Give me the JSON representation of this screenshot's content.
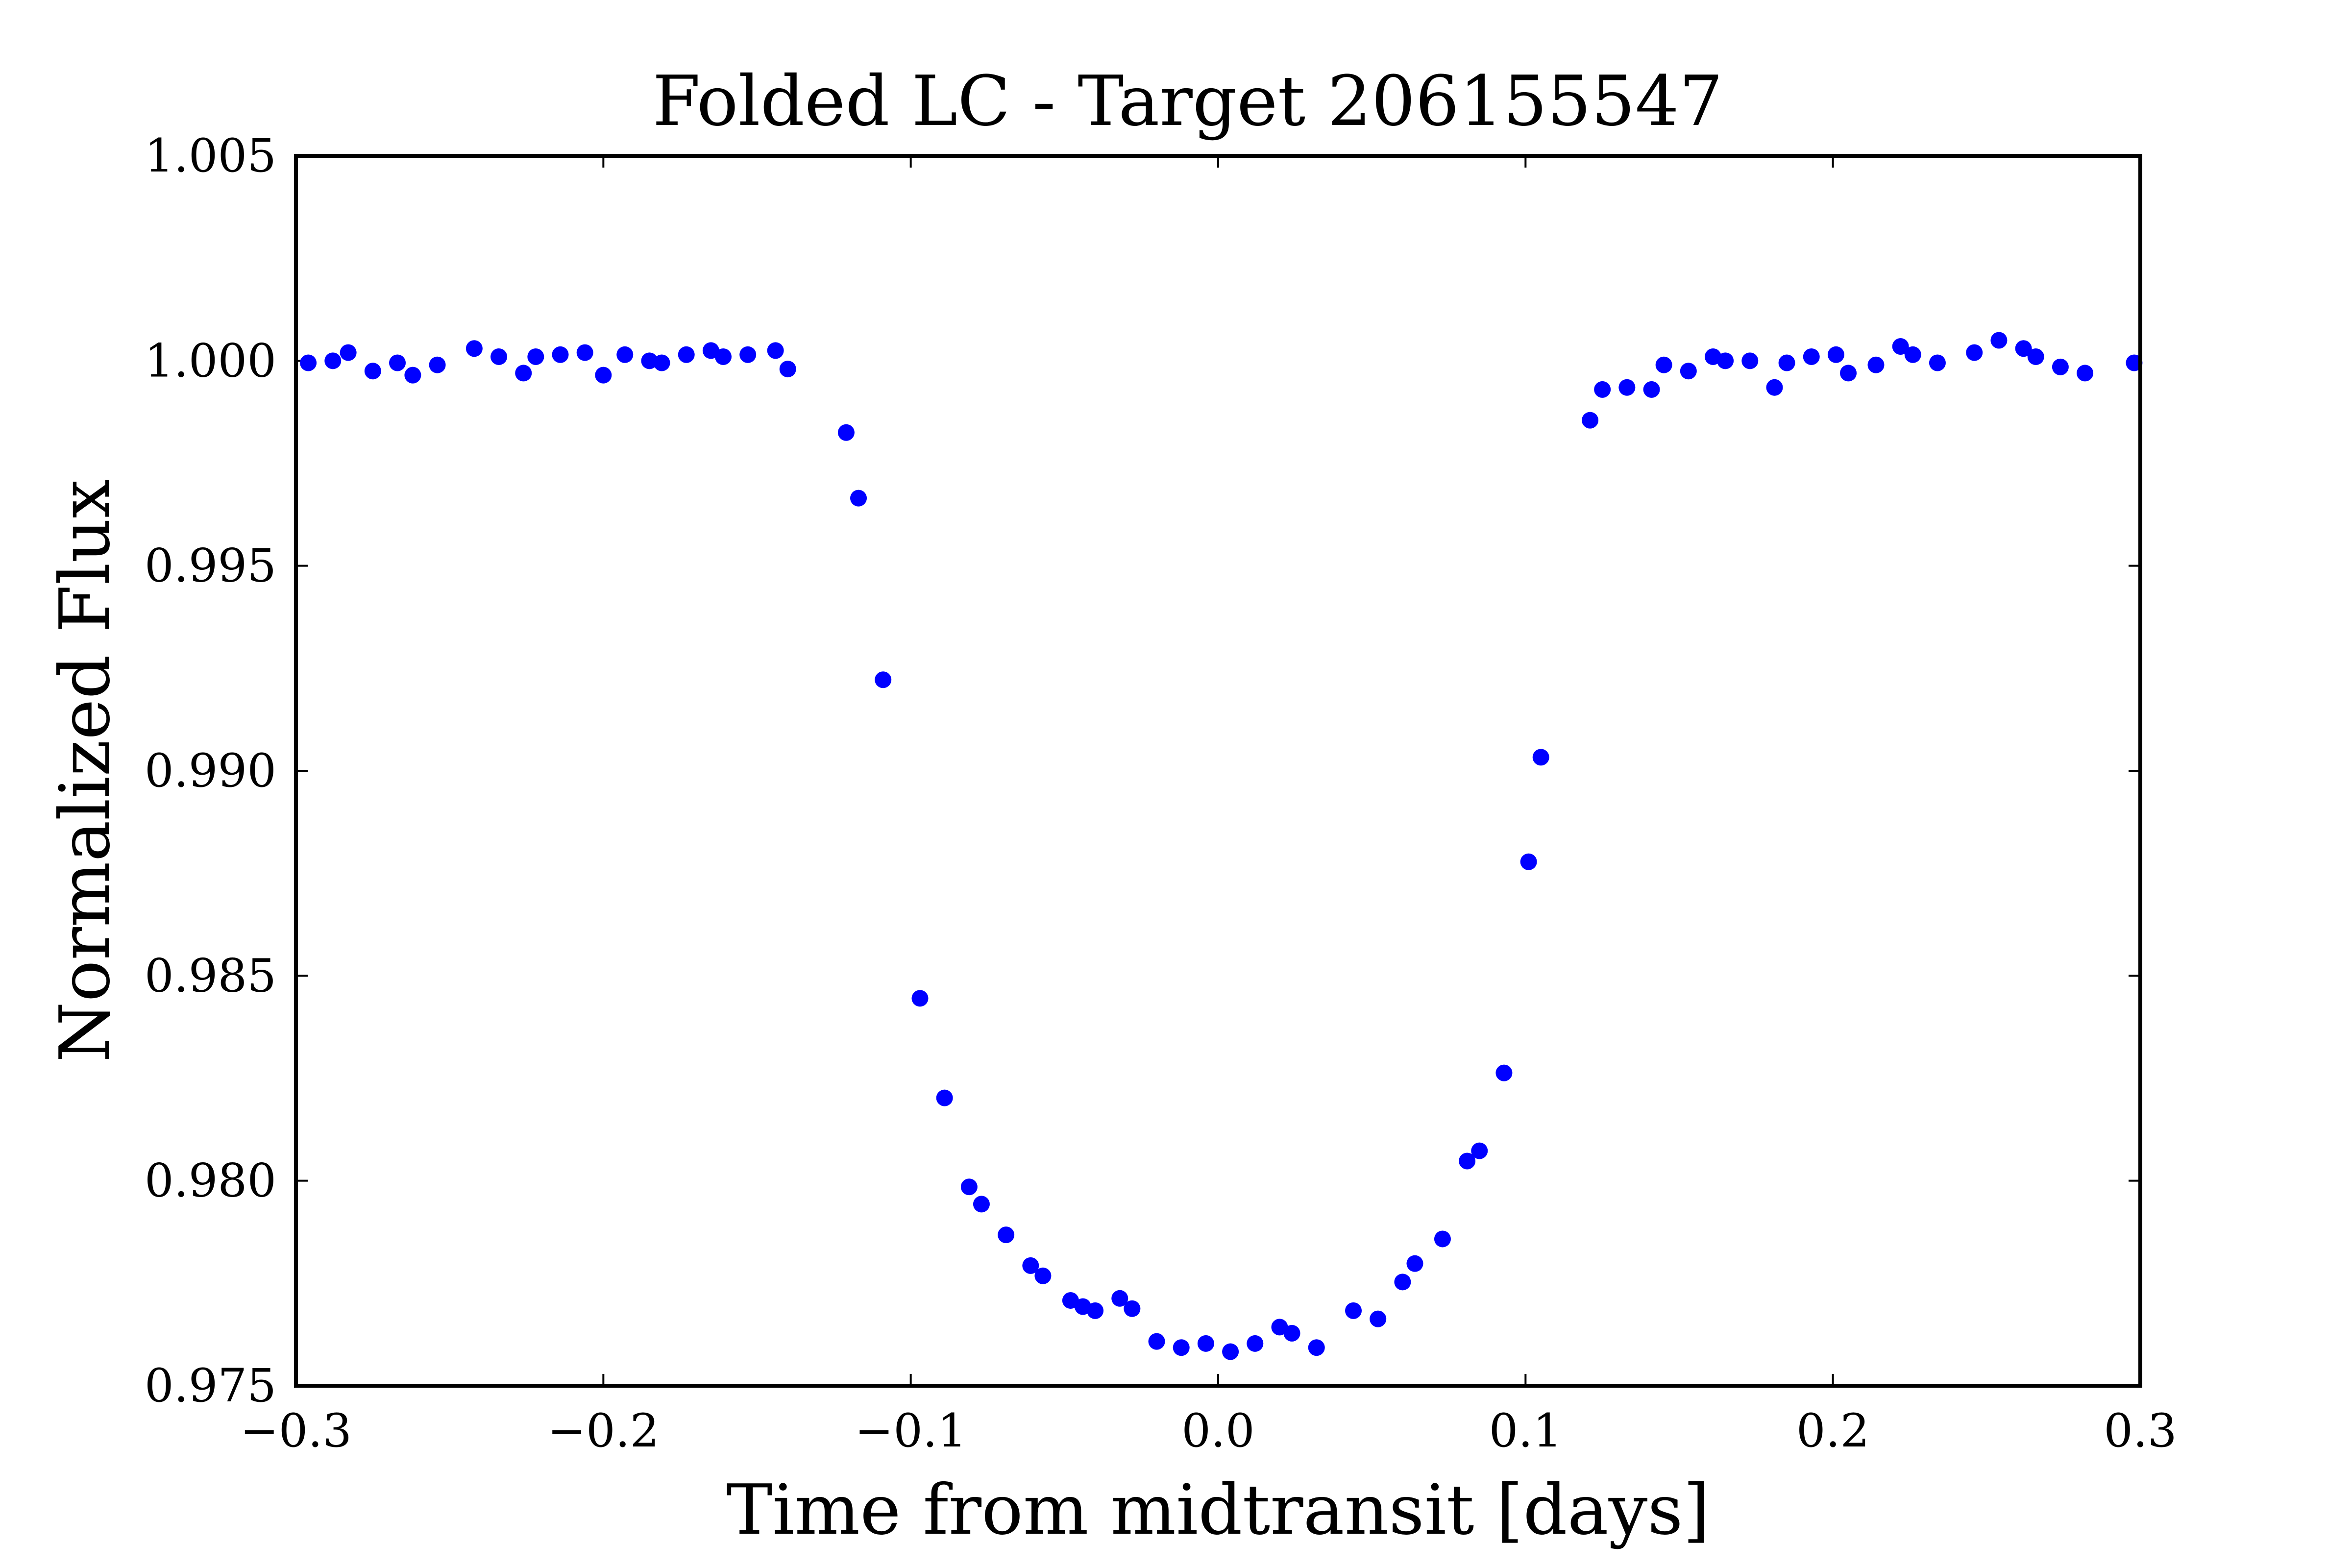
{
  "chart_data": {
    "type": "scatter",
    "title": "Folded LC - Target 206155547",
    "xlabel": "Time from midtransit [days]",
    "ylabel": "Normalized Flux",
    "xlim": [
      -0.3,
      0.3
    ],
    "ylim": [
      0.975,
      1.005
    ],
    "xticks": [
      -0.3,
      -0.2,
      -0.1,
      0.0,
      0.1,
      0.2,
      0.3
    ],
    "xtick_labels": [
      "−0.3",
      "−0.2",
      "−0.1",
      "0.0",
      "0.1",
      "0.2",
      "0.3"
    ],
    "yticks": [
      0.975,
      0.98,
      0.985,
      0.99,
      0.995,
      1.0,
      1.005
    ],
    "ytick_labels": [
      "0.975",
      "0.980",
      "0.985",
      "0.990",
      "0.995",
      "1.000",
      "1.005"
    ],
    "grid": false,
    "marker_color": "#0000ff",
    "series": [
      {
        "x": [
          -0.296,
          -0.288,
          -0.283,
          -0.275,
          -0.267,
          -0.262,
          -0.254,
          -0.242,
          -0.234,
          -0.226,
          -0.222,
          -0.214,
          -0.206,
          -0.2,
          -0.193,
          -0.185,
          -0.181,
          -0.173,
          -0.165,
          -0.161,
          -0.153,
          -0.144,
          -0.14,
          -0.121,
          -0.117,
          -0.109,
          -0.097,
          -0.089,
          -0.081,
          -0.077,
          -0.069,
          -0.061,
          -0.057,
          -0.048,
          -0.044,
          -0.04,
          -0.032,
          -0.028,
          -0.02,
          -0.012,
          -0.004,
          0.004,
          0.012,
          0.02,
          0.024,
          0.032,
          0.044,
          0.052,
          0.06,
          0.064,
          0.073,
          0.081,
          0.085,
          0.093,
          0.101,
          0.105,
          0.121,
          0.125,
          0.133,
          0.141,
          0.145,
          0.153,
          0.161,
          0.165,
          0.173,
          0.181,
          0.185,
          0.193,
          0.201,
          0.205,
          0.214,
          0.222,
          0.226,
          0.234,
          0.246,
          0.254,
          0.262,
          0.266,
          0.274,
          0.282,
          0.298
        ],
        "y": [
          0.99995,
          1.0,
          1.0002,
          0.99975,
          0.99995,
          0.99965,
          0.9999,
          1.0003,
          1.0001,
          0.9997,
          1.0001,
          1.00015,
          1.0002,
          0.99965,
          1.00015,
          1.0,
          0.99995,
          1.00015,
          1.00025,
          1.0001,
          1.00015,
          1.00025,
          0.9998,
          0.99825,
          0.99665,
          0.99222,
          0.98445,
          0.98202,
          0.97985,
          0.97943,
          0.97868,
          0.97793,
          0.97768,
          0.97708,
          0.97693,
          0.97683,
          0.97713,
          0.97688,
          0.97608,
          0.97593,
          0.97603,
          0.97583,
          0.97603,
          0.97643,
          0.97628,
          0.97593,
          0.97683,
          0.97663,
          0.97753,
          0.97798,
          0.97858,
          0.98048,
          0.98073,
          0.98263,
          0.98778,
          0.99033,
          0.99855,
          0.9993,
          0.99935,
          0.9993,
          0.9999,
          0.99975,
          1.0001,
          1.0,
          1.0,
          0.99935,
          0.99995,
          1.0001,
          1.00015,
          0.9997,
          0.9999,
          1.00035,
          1.00015,
          0.99995,
          1.0002,
          1.0005,
          1.0003,
          1.0001,
          0.99985,
          0.9997,
          0.99995
        ]
      }
    ]
  }
}
